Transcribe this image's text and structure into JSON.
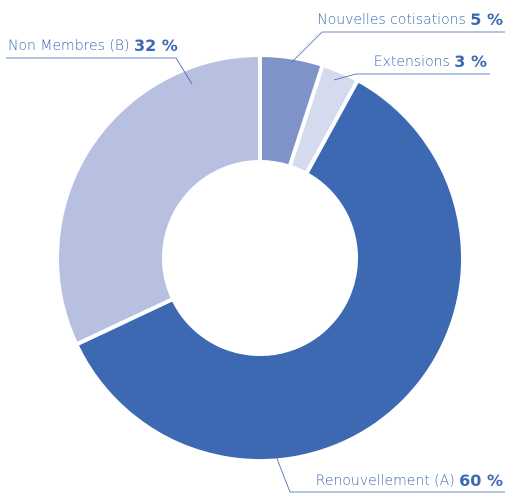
{
  "chart_data": {
    "type": "pie",
    "categories": [
      "Nouvelles cotisations",
      "Extensions",
      "Renouvellement (A)",
      "Non Membres (B)"
    ],
    "values": [
      5,
      3,
      60,
      32
    ],
    "value_labels": [
      "5 %",
      "3 %",
      "60 %",
      "32 %"
    ],
    "colors": [
      "#7f93c9",
      "#d5dbef",
      "#3d69b3",
      "#b7c0e0"
    ]
  }
}
